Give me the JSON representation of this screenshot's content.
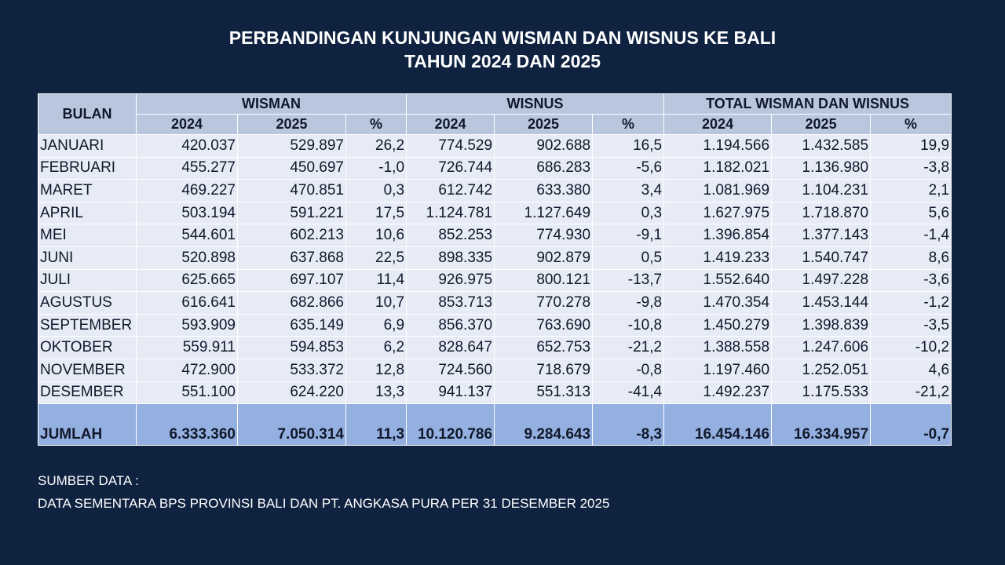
{
  "header": {
    "title_line1": "PERBANDINGAN KUNJUNGAN WISMAN DAN WISNUS KE BALI",
    "title_line2": "TAHUN 2024 DAN 2025"
  },
  "table": {
    "month_header": "BULAN",
    "groups": [
      "WISMAN",
      "WISNUS",
      "TOTAL WISMAN DAN WISNUS"
    ],
    "subheaders": [
      "2024",
      "2025",
      "%",
      "2024",
      "2025",
      "%",
      "2024",
      "2025",
      "%"
    ],
    "rows": [
      [
        "JANUARI",
        "420.037",
        "529.897",
        "26,2",
        "774.529",
        "902.688",
        "16,5",
        "1.194.566",
        "1.432.585",
        "19,9"
      ],
      [
        "FEBRUARI",
        "455.277",
        "450.697",
        "-1,0",
        "726.744",
        "686.283",
        "-5,6",
        "1.182.021",
        "1.136.980",
        "-3,8"
      ],
      [
        "MARET",
        "469.227",
        "470.851",
        "0,3",
        "612.742",
        "633.380",
        "3,4",
        "1.081.969",
        "1.104.231",
        "2,1"
      ],
      [
        "APRIL",
        "503.194",
        "591.221",
        "17,5",
        "1.124.781",
        "1.127.649",
        "0,3",
        "1.627.975",
        "1.718.870",
        "5,6"
      ],
      [
        "MEI",
        "544.601",
        "602.213",
        "10,6",
        "852.253",
        "774.930",
        "-9,1",
        "1.396.854",
        "1.377.143",
        "-1,4"
      ],
      [
        "JUNI",
        "520.898",
        "637.868",
        "22,5",
        "898.335",
        "902.879",
        "0,5",
        "1.419.233",
        "1.540.747",
        "8,6"
      ],
      [
        "JULI",
        "625.665",
        "697.107",
        "11,4",
        "926.975",
        "800.121",
        "-13,7",
        "1.552.640",
        "1.497.228",
        "-3,6"
      ],
      [
        "AGUSTUS",
        "616.641",
        "682.866",
        "10,7",
        "853.713",
        "770.278",
        "-9,8",
        "1.470.354",
        "1.453.144",
        "-1,2"
      ],
      [
        "SEPTEMBER",
        "593.909",
        "635.149",
        "6,9",
        "856.370",
        "763.690",
        "-10,8",
        "1.450.279",
        "1.398.839",
        "-3,5"
      ],
      [
        "OKTOBER",
        "559.911",
        "594.853",
        "6,2",
        "828.647",
        "652.753",
        "-21,2",
        "1.388.558",
        "1.247.606",
        "-10,2"
      ],
      [
        "NOVEMBER",
        "472.900",
        "533.372",
        "12,8",
        "724.560",
        "718.679",
        "-0,8",
        "1.197.460",
        "1.252.051",
        "4,6"
      ],
      [
        "DESEMBER",
        "551.100",
        "624.220",
        "13,3",
        "941.137",
        "551.313",
        "-41,4",
        "1.492.237",
        "1.175.533",
        "-21,2"
      ]
    ],
    "total": [
      "JUMLAH",
      "6.333.360",
      "7.050.314",
      "11,3",
      "10.120.786",
      "9.284.643",
      "-8,3",
      "16.454.146",
      "16.334.957",
      "-0,7"
    ]
  },
  "footer": {
    "source_label": "SUMBER DATA :",
    "source_text": "DATA SEMENTARA BPS PROVINSI BALI DAN PT. ANGKASA PURA PER 31 DESEMBER 2025"
  }
}
